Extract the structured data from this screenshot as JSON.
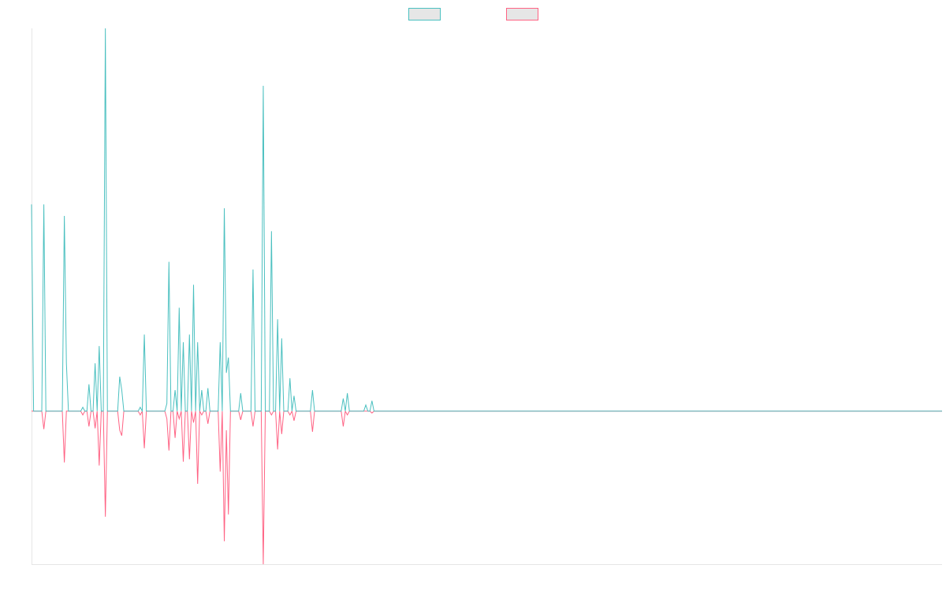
{
  "chart_data": {
    "type": "line",
    "x": [
      0,
      1,
      5,
      6,
      7,
      15,
      16,
      17,
      18,
      24,
      25,
      26,
      27,
      28,
      29,
      30,
      31,
      32,
      33,
      34,
      35,
      36,
      37,
      42,
      43,
      44,
      45,
      52,
      53,
      54,
      55,
      56,
      65,
      66,
      67,
      68,
      69,
      70,
      71,
      72,
      73,
      74,
      75,
      76,
      77,
      78,
      79,
      80,
      81,
      82,
      83,
      84,
      85,
      86,
      87,
      91,
      92,
      93,
      94,
      95,
      96,
      97,
      101,
      102,
      103,
      107,
      108,
      109,
      112,
      113,
      114,
      116,
      117,
      118,
      119,
      120,
      121,
      122,
      123,
      125,
      126,
      127,
      128,
      129,
      136,
      137,
      138,
      151,
      152,
      153,
      154,
      155,
      162,
      163,
      164,
      165,
      166,
      167,
      444
    ],
    "series": [
      {
        "color": "#4bc0c0",
        "values": [
          5.4,
          0,
          0,
          5.4,
          0,
          0,
          5.1,
          1.25,
          0,
          0,
          0.1,
          0,
          0,
          0.7,
          0,
          0,
          1.25,
          0,
          1.7,
          0,
          0,
          10,
          0,
          0,
          0.9,
          0.55,
          0,
          0,
          0.1,
          0,
          2,
          0,
          0,
          0.2,
          3.9,
          0,
          0,
          0.55,
          0,
          2.7,
          0,
          1.8,
          0,
          0,
          2,
          0,
          3.3,
          0,
          1.8,
          0,
          0.55,
          0,
          0,
          0.6,
          0,
          0,
          1.8,
          0,
          5.3,
          1,
          1.4,
          0,
          0,
          0.47,
          0,
          0,
          3.7,
          0,
          0,
          8.5,
          0,
          0,
          4.7,
          0,
          0,
          2.4,
          0,
          1.9,
          0,
          0,
          0.86,
          0,
          0.4,
          0,
          0,
          0.55,
          0,
          0,
          0.33,
          0,
          0.47,
          0,
          0,
          0.16,
          0,
          0,
          0.27,
          0,
          0
        ]
      },
      {
        "color": "#ff6384",
        "values": [
          0,
          0,
          0,
          -0.47,
          0,
          0,
          -1.34,
          0,
          0,
          0,
          -0.1,
          0,
          0,
          -0.4,
          0,
          0,
          -0.45,
          0,
          -1.42,
          0,
          0,
          -2.76,
          0,
          0,
          -0.5,
          -0.64,
          0,
          0,
          -0.1,
          0,
          -0.97,
          0,
          0,
          -0.2,
          -1.03,
          0,
          0,
          -0.7,
          0,
          -0.2,
          0,
          -1.32,
          0,
          0,
          -1.26,
          0,
          -0.3,
          0,
          -1.9,
          0,
          -0.1,
          0,
          0,
          -0.33,
          0,
          0,
          -1.58,
          0,
          -3.4,
          -0.5,
          -2.7,
          0,
          0,
          -0.23,
          0,
          0,
          -0.4,
          0,
          0,
          -4,
          0,
          0,
          -0.1,
          0,
          0,
          -1,
          0,
          -0.6,
          0,
          0,
          -0.1,
          0,
          -0.25,
          0,
          0,
          -0.54,
          0,
          0,
          -0.4,
          0,
          -0.1,
          0,
          0,
          0,
          0,
          0,
          -0.05,
          0,
          0
        ]
      }
    ],
    "xlim": [
      0,
      444
    ],
    "ylim": [
      -4,
      10
    ],
    "legend": "top"
  }
}
